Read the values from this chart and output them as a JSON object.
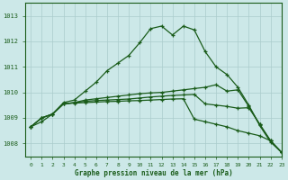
{
  "title": "Graphe pression niveau de la mer (hPa)",
  "bg_color": "#cce8e8",
  "grid_color": "#aacccc",
  "line_color": "#1a5c1a",
  "xlim": [
    -0.5,
    23
  ],
  "ylim": [
    1007.5,
    1013.5
  ],
  "yticks": [
    1008,
    1009,
    1010,
    1011,
    1012,
    1013
  ],
  "xticks": [
    0,
    1,
    2,
    3,
    4,
    5,
    6,
    7,
    8,
    9,
    10,
    11,
    12,
    13,
    14,
    15,
    16,
    17,
    18,
    19,
    20,
    21,
    22,
    23
  ],
  "series": [
    [
      1008.65,
      1008.85,
      1009.15,
      1009.6,
      1009.7,
      1010.05,
      1010.4,
      1010.85,
      1011.15,
      1011.45,
      1011.95,
      1012.5,
      1012.6,
      1012.25,
      1012.6,
      1012.45,
      1011.6,
      1011.0,
      1010.7,
      1010.2,
      1009.5,
      1008.7,
      1008.05,
      1007.65
    ],
    [
      1008.65,
      1009.0,
      1009.15,
      1009.55,
      1009.6,
      1009.7,
      1009.75,
      1009.8,
      1009.85,
      1009.9,
      1009.95,
      1009.98,
      1010.0,
      1010.05,
      1010.1,
      1010.15,
      1010.2,
      1010.3,
      1010.05,
      1010.1,
      1009.45,
      1008.75,
      1008.1,
      1007.65
    ],
    [
      1008.65,
      1009.0,
      1009.15,
      1009.55,
      1009.6,
      1009.65,
      1009.68,
      1009.7,
      1009.72,
      1009.74,
      1009.78,
      1009.82,
      1009.85,
      1009.88,
      1009.9,
      1009.92,
      1009.55,
      1009.5,
      1009.45,
      1009.38,
      1009.4,
      1008.75,
      1008.1,
      1007.65
    ],
    [
      1008.65,
      1009.0,
      1009.15,
      1009.55,
      1009.58,
      1009.6,
      1009.62,
      1009.64,
      1009.65,
      1009.67,
      1009.68,
      1009.7,
      1009.72,
      1009.74,
      1009.75,
      1008.95,
      1008.85,
      1008.75,
      1008.65,
      1008.5,
      1008.4,
      1008.3,
      1008.1,
      1007.65
    ]
  ]
}
